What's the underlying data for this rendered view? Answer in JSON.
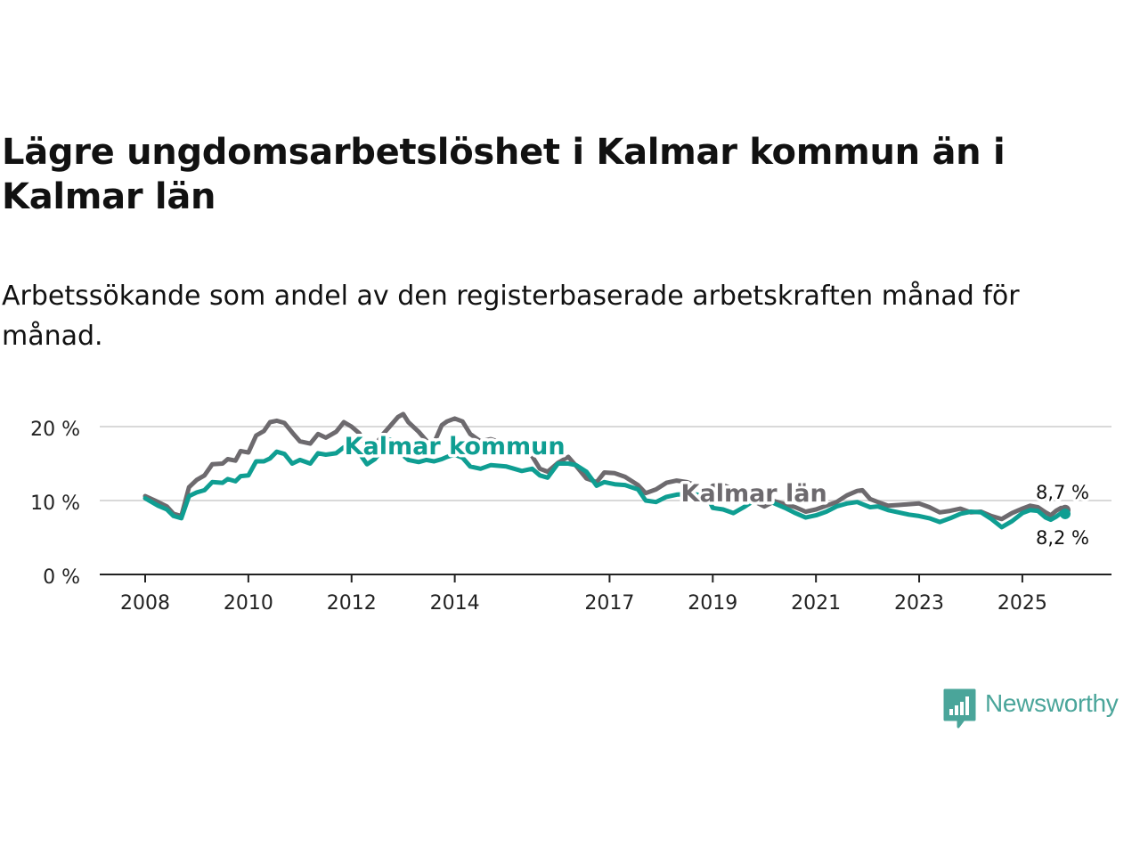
{
  "title": "Lägre ungdomsarbetslöshet i Kalmar kommun än i Kalmar län",
  "subtitle": "Arbetssökande som andel av den registerbaserade arbetskraften månad för månad.",
  "brand": {
    "name": "Newsworthy",
    "color": "#4aa59a"
  },
  "chart_data": {
    "type": "line",
    "title": "Lägre ungdomsarbetslöshet i Kalmar kommun än i Kalmar län",
    "xlabel": "",
    "ylabel": "",
    "x_range": [
      2008,
      2025.83
    ],
    "ylim": [
      0,
      20
    ],
    "y_ticks": [
      0,
      10,
      20
    ],
    "y_tick_labels": [
      "0 %",
      "10 %",
      "20 %"
    ],
    "x_ticks": [
      2008,
      2010,
      2012,
      2014,
      2017,
      2019,
      2021,
      2023,
      2025
    ],
    "x_tick_labels": [
      "2008",
      "2010",
      "2012",
      "2014",
      "2017",
      "2019",
      "2021",
      "2023",
      "2025"
    ],
    "grid": true,
    "series": [
      {
        "name": "Kalmar län",
        "color": "#6d6a6e",
        "end_label": "8,7 %",
        "points": [
          [
            2008.0,
            10.6
          ],
          [
            2008.25,
            9.8
          ],
          [
            2008.42,
            9.2
          ],
          [
            2008.55,
            8.2
          ],
          [
            2008.7,
            7.9
          ],
          [
            2008.85,
            11.8
          ],
          [
            2009.0,
            12.8
          ],
          [
            2009.15,
            13.4
          ],
          [
            2009.3,
            14.9
          ],
          [
            2009.5,
            15.0
          ],
          [
            2009.6,
            15.6
          ],
          [
            2009.75,
            15.4
          ],
          [
            2009.85,
            16.7
          ],
          [
            2010.0,
            16.5
          ],
          [
            2010.15,
            18.8
          ],
          [
            2010.3,
            19.4
          ],
          [
            2010.42,
            20.6
          ],
          [
            2010.55,
            20.8
          ],
          [
            2010.7,
            20.5
          ],
          [
            2010.85,
            19.2
          ],
          [
            2011.0,
            18.0
          ],
          [
            2011.2,
            17.7
          ],
          [
            2011.35,
            19.0
          ],
          [
            2011.5,
            18.5
          ],
          [
            2011.7,
            19.3
          ],
          [
            2011.85,
            20.6
          ],
          [
            2012.0,
            20.0
          ],
          [
            2012.15,
            19.1
          ],
          [
            2012.3,
            17.2
          ],
          [
            2012.45,
            17.4
          ],
          [
            2012.6,
            18.9
          ],
          [
            2012.75,
            20.1
          ],
          [
            2012.9,
            21.3
          ],
          [
            2013.0,
            21.7
          ],
          [
            2013.1,
            20.6
          ],
          [
            2013.3,
            19.3
          ],
          [
            2013.45,
            18.1
          ],
          [
            2013.6,
            17.8
          ],
          [
            2013.75,
            20.2
          ],
          [
            2013.85,
            20.7
          ],
          [
            2014.0,
            21.1
          ],
          [
            2014.15,
            20.7
          ],
          [
            2014.3,
            19.0
          ],
          [
            2014.5,
            18.0
          ],
          [
            2014.7,
            18.3
          ],
          [
            2015.0,
            17.6
          ],
          [
            2015.3,
            17.0
          ],
          [
            2015.5,
            16.0
          ],
          [
            2015.65,
            14.3
          ],
          [
            2015.8,
            13.9
          ],
          [
            2016.0,
            15.1
          ],
          [
            2016.2,
            15.9
          ],
          [
            2016.35,
            14.7
          ],
          [
            2016.55,
            13.0
          ],
          [
            2016.75,
            12.5
          ],
          [
            2016.9,
            13.8
          ],
          [
            2017.1,
            13.7
          ],
          [
            2017.3,
            13.2
          ],
          [
            2017.55,
            12.1
          ],
          [
            2017.7,
            11.0
          ],
          [
            2017.9,
            11.5
          ],
          [
            2018.1,
            12.4
          ],
          [
            2018.3,
            12.7
          ],
          [
            2018.5,
            12.5
          ],
          [
            2018.7,
            12.0
          ],
          [
            2018.9,
            11.2
          ],
          [
            2019.0,
            12.0
          ],
          [
            2019.2,
            12.1
          ],
          [
            2019.4,
            11.5
          ],
          [
            2019.6,
            10.8
          ],
          [
            2019.8,
            9.9
          ],
          [
            2020.0,
            9.2
          ],
          [
            2020.2,
            9.9
          ],
          [
            2020.4,
            9.5
          ],
          [
            2020.6,
            9.1
          ],
          [
            2020.8,
            8.5
          ],
          [
            2021.0,
            8.8
          ],
          [
            2021.2,
            9.3
          ],
          [
            2021.4,
            9.8
          ],
          [
            2021.6,
            10.7
          ],
          [
            2021.8,
            11.3
          ],
          [
            2021.9,
            11.4
          ],
          [
            2022.05,
            10.2
          ],
          [
            2022.2,
            9.8
          ],
          [
            2022.4,
            9.3
          ],
          [
            2022.6,
            9.4
          ],
          [
            2022.8,
            9.5
          ],
          [
            2023.0,
            9.6
          ],
          [
            2023.2,
            9.1
          ],
          [
            2023.4,
            8.4
          ],
          [
            2023.6,
            8.6
          ],
          [
            2023.8,
            8.9
          ],
          [
            2024.0,
            8.4
          ],
          [
            2024.2,
            8.5
          ],
          [
            2024.4,
            7.9
          ],
          [
            2024.6,
            7.5
          ],
          [
            2024.8,
            8.3
          ],
          [
            2025.0,
            8.9
          ],
          [
            2025.15,
            9.3
          ],
          [
            2025.3,
            9.1
          ],
          [
            2025.45,
            8.4
          ],
          [
            2025.55,
            8.0
          ],
          [
            2025.65,
            8.6
          ],
          [
            2025.75,
            9.0
          ],
          [
            2025.83,
            8.7
          ]
        ]
      },
      {
        "name": "Kalmar kommun",
        "color": "#0f9e92",
        "end_label": "8,2 %",
        "points": [
          [
            2008.0,
            10.3
          ],
          [
            2008.25,
            9.3
          ],
          [
            2008.42,
            8.8
          ],
          [
            2008.55,
            7.9
          ],
          [
            2008.7,
            7.6
          ],
          [
            2008.85,
            10.6
          ],
          [
            2009.0,
            11.1
          ],
          [
            2009.15,
            11.4
          ],
          [
            2009.3,
            12.5
          ],
          [
            2009.5,
            12.4
          ],
          [
            2009.6,
            12.9
          ],
          [
            2009.75,
            12.6
          ],
          [
            2009.85,
            13.3
          ],
          [
            2010.0,
            13.4
          ],
          [
            2010.15,
            15.3
          ],
          [
            2010.3,
            15.3
          ],
          [
            2010.42,
            15.7
          ],
          [
            2010.55,
            16.6
          ],
          [
            2010.7,
            16.3
          ],
          [
            2010.85,
            15.0
          ],
          [
            2011.0,
            15.5
          ],
          [
            2011.2,
            15.0
          ],
          [
            2011.35,
            16.4
          ],
          [
            2011.5,
            16.2
          ],
          [
            2011.7,
            16.4
          ],
          [
            2011.85,
            17.2
          ],
          [
            2012.0,
            16.9
          ],
          [
            2012.15,
            16.4
          ],
          [
            2012.3,
            14.9
          ],
          [
            2012.45,
            15.6
          ],
          [
            2012.6,
            16.9
          ],
          [
            2012.75,
            18.2
          ],
          [
            2012.9,
            16.6
          ],
          [
            2013.0,
            16.1
          ],
          [
            2013.1,
            15.5
          ],
          [
            2013.3,
            15.2
          ],
          [
            2013.45,
            15.5
          ],
          [
            2013.6,
            15.3
          ],
          [
            2013.75,
            15.6
          ],
          [
            2013.85,
            15.9
          ],
          [
            2014.0,
            16.2
          ],
          [
            2014.15,
            15.8
          ],
          [
            2014.3,
            14.6
          ],
          [
            2014.5,
            14.3
          ],
          [
            2014.7,
            14.8
          ],
          [
            2015.0,
            14.6
          ],
          [
            2015.3,
            14.0
          ],
          [
            2015.5,
            14.3
          ],
          [
            2015.65,
            13.4
          ],
          [
            2015.8,
            13.1
          ],
          [
            2016.0,
            15.0
          ],
          [
            2016.2,
            15.0
          ],
          [
            2016.35,
            14.8
          ],
          [
            2016.55,
            13.9
          ],
          [
            2016.75,
            12.0
          ],
          [
            2016.9,
            12.5
          ],
          [
            2017.1,
            12.2
          ],
          [
            2017.3,
            12.1
          ],
          [
            2017.55,
            11.5
          ],
          [
            2017.7,
            10.0
          ],
          [
            2017.9,
            9.8
          ],
          [
            2018.1,
            10.5
          ],
          [
            2018.3,
            10.8
          ],
          [
            2018.5,
            10.9
          ],
          [
            2018.7,
            10.8
          ],
          [
            2018.9,
            10.5
          ],
          [
            2019.0,
            9.0
          ],
          [
            2019.2,
            8.8
          ],
          [
            2019.4,
            8.3
          ],
          [
            2019.6,
            9.1
          ],
          [
            2019.8,
            10.0
          ],
          [
            2020.0,
            10.4
          ],
          [
            2020.2,
            9.6
          ],
          [
            2020.4,
            9.0
          ],
          [
            2020.6,
            8.3
          ],
          [
            2020.8,
            7.7
          ],
          [
            2021.0,
            8.0
          ],
          [
            2021.2,
            8.5
          ],
          [
            2021.4,
            9.2
          ],
          [
            2021.6,
            9.6
          ],
          [
            2021.8,
            9.8
          ],
          [
            2021.9,
            9.5
          ],
          [
            2022.05,
            9.1
          ],
          [
            2022.2,
            9.2
          ],
          [
            2022.4,
            8.7
          ],
          [
            2022.6,
            8.4
          ],
          [
            2022.8,
            8.1
          ],
          [
            2023.0,
            7.9
          ],
          [
            2023.2,
            7.6
          ],
          [
            2023.4,
            7.1
          ],
          [
            2023.6,
            7.6
          ],
          [
            2023.8,
            8.2
          ],
          [
            2024.0,
            8.5
          ],
          [
            2024.2,
            8.4
          ],
          [
            2024.4,
            7.5
          ],
          [
            2024.6,
            6.4
          ],
          [
            2024.8,
            7.2
          ],
          [
            2025.0,
            8.3
          ],
          [
            2025.15,
            8.7
          ],
          [
            2025.3,
            8.6
          ],
          [
            2025.45,
            7.7
          ],
          [
            2025.55,
            7.4
          ],
          [
            2025.65,
            7.8
          ],
          [
            2025.75,
            8.3
          ],
          [
            2025.83,
            8.2
          ]
        ]
      }
    ],
    "annotations": [
      {
        "text": "Kalmar kommun",
        "series": "Kalmar kommun",
        "x": 2014.0,
        "y": 17.5
      },
      {
        "text": "Kalmar län",
        "series": "Kalmar län",
        "x": 2019.8,
        "y": 11.1
      }
    ]
  }
}
